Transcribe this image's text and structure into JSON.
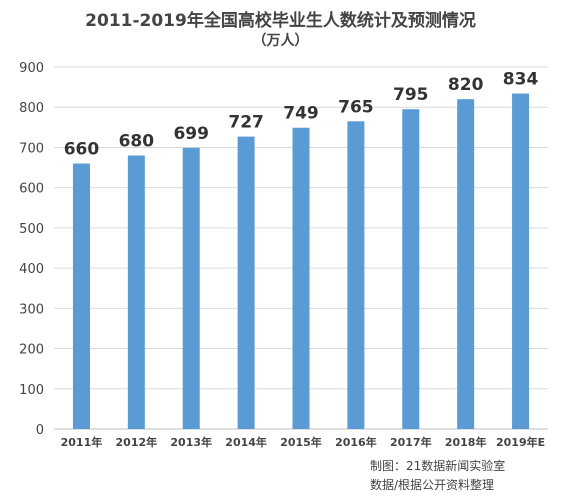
{
  "chart_data": {
    "type": "bar",
    "title": "2011-2019年全国高校毕业生人数统计及预测情况",
    "subtitle": "（万人）",
    "categories": [
      "2011年",
      "2012年",
      "2013年",
      "2014年",
      "2015年",
      "2016年",
      "2017年",
      "2018年",
      "2019年E"
    ],
    "values": [
      660,
      680,
      699,
      727,
      749,
      765,
      795,
      820,
      834
    ],
    "ylim": [
      0,
      900
    ],
    "yticks": [
      0,
      100,
      200,
      300,
      400,
      500,
      600,
      700,
      800,
      900
    ],
    "grid": true,
    "bar_color": "#5b9bd5",
    "xlabel": "",
    "ylabel": ""
  },
  "credits": {
    "line1": "制图：21数据新闻实验室",
    "line2": "数据/根据公开资料整理"
  }
}
